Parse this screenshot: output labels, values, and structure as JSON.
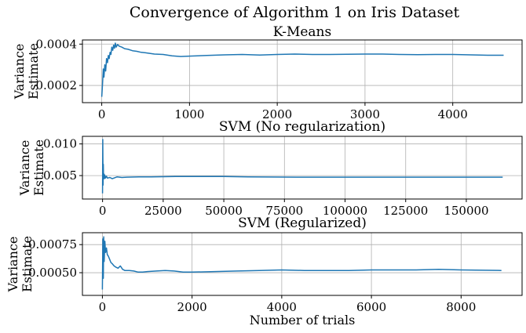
{
  "figure": {
    "suptitle": "Convergence of Algorithm 1 on Iris Dataset",
    "line_color": "#1f77b4",
    "grid_color": "#b0b0b0"
  },
  "chart_data": [
    {
      "type": "line",
      "title": "K-Means",
      "xlabel": "",
      "ylabel": "Variance\nEstimate",
      "xlim": [
        -220,
        4790
      ],
      "ylim": [
        0.000117,
        0.00042
      ],
      "xticks": [
        0,
        1000,
        2000,
        3000,
        4000
      ],
      "xtick_labels": [
        "0",
        "1000",
        "2000",
        "3000",
        "4000"
      ],
      "yticks": [
        0.0002,
        0.0004
      ],
      "ytick_labels": [
        "0.0002",
        "0.0004"
      ],
      "grid": true,
      "series": [
        {
          "x": [
            0,
            5,
            10,
            18,
            25,
            35,
            45,
            55,
            65,
            75,
            85,
            95,
            105,
            115,
            125,
            135,
            145,
            155,
            165,
            180,
            200,
            230,
            260,
            300,
            350,
            400,
            450,
            500,
            600,
            700,
            800,
            900,
            1000,
            1200,
            1400,
            1600,
            1800,
            2000,
            2200,
            2400,
            2600,
            2800,
            3000,
            3200,
            3400,
            3600,
            3800,
            4000,
            4200,
            4400,
            4580
          ],
          "y": [
            0.000145,
            0.000175,
            0.000215,
            0.00028,
            0.00024,
            0.0003,
            0.00027,
            0.00033,
            0.00031,
            0.000345,
            0.00033,
            0.00036,
            0.00035,
            0.000385,
            0.00037,
            0.000395,
            0.00038,
            0.000405,
            0.000385,
            0.000398,
            0.00039,
            0.000385,
            0.000378,
            0.000375,
            0.000368,
            0.000365,
            0.00036,
            0.000358,
            0.000352,
            0.00035,
            0.000343,
            0.00034,
            0.000342,
            0.000345,
            0.000348,
            0.00035,
            0.000347,
            0.00035,
            0.000352,
            0.00035,
            0.00035,
            0.000351,
            0.000352,
            0.000352,
            0.00035,
            0.000349,
            0.00035,
            0.00035,
            0.000348,
            0.000346,
            0.000346
          ]
        }
      ]
    },
    {
      "type": "line",
      "title": "SVM (No regularization)",
      "xlabel": "",
      "ylabel": "Variance\nEstimate",
      "xlim": [
        -8300,
        173000
      ],
      "ylim": [
        0.0013,
        0.0112
      ],
      "xticks": [
        0,
        25000,
        50000,
        75000,
        100000,
        125000,
        150000
      ],
      "xtick_labels": [
        "0",
        "25000",
        "50000",
        "75000",
        "100000",
        "125000",
        "150000"
      ],
      "yticks": [
        0.005,
        0.01
      ],
      "ytick_labels": [
        "0.005",
        "0.010"
      ],
      "grid": true,
      "series": [
        {
          "x": [
            0,
            100,
            200,
            300,
            400,
            500,
            700,
            900,
            1200,
            1600,
            2000,
            3000,
            4000,
            6000,
            8000,
            10000,
            15000,
            20000,
            30000,
            40000,
            50000,
            60000,
            80000,
            100000,
            120000,
            140000,
            160000,
            165000
          ],
          "y": [
            0.0022,
            0.0107,
            0.0035,
            0.0068,
            0.0046,
            0.0053,
            0.0045,
            0.0051,
            0.0046,
            0.0049,
            0.0046,
            0.0047,
            0.0045,
            0.0048,
            0.0047,
            0.00475,
            0.0048,
            0.0048,
            0.00485,
            0.00485,
            0.00485,
            0.0048,
            0.00475,
            0.00475,
            0.00475,
            0.00475,
            0.00475,
            0.00475
          ]
        }
      ]
    },
    {
      "type": "line",
      "title": "SVM (Regularized)",
      "xlabel": "Number of trials",
      "ylabel": "Variance\nEstimate",
      "xlim": [
        -445,
        9360
      ],
      "ylim": [
        0.000298,
        0.000856
      ],
      "xticks": [
        0,
        2000,
        4000,
        6000,
        8000
      ],
      "xtick_labels": [
        "0",
        "2000",
        "4000",
        "6000",
        "8000"
      ],
      "yticks": [
        0.0005,
        0.00075
      ],
      "ytick_labels": [
        "0.00050",
        "0.00075"
      ],
      "grid": true,
      "series": [
        {
          "x": [
            0,
            10,
            20,
            30,
            40,
            55,
            70,
            90,
            110,
            130,
            160,
            190,
            220,
            260,
            300,
            350,
            400,
            450,
            500,
            600,
            700,
            800,
            900,
            1000,
            1200,
            1400,
            1600,
            1800,
            2000,
            2500,
            3000,
            3500,
            4000,
            4500,
            5000,
            5500,
            6000,
            6500,
            7000,
            7500,
            8000,
            8500,
            8900
          ],
          "y": [
            0.00035,
            0.0008,
            0.00045,
            0.00082,
            0.0006,
            0.00078,
            0.00068,
            0.00072,
            0.00066,
            0.00065,
            0.00062,
            0.00059,
            0.00058,
            0.00056,
            0.00055,
            0.00054,
            0.00056,
            0.00053,
            0.00052,
            0.00052,
            0.000515,
            0.000505,
            0.000505,
            0.00051,
            0.000515,
            0.00052,
            0.000515,
            0.000505,
            0.000505,
            0.00051,
            0.000515,
            0.00052,
            0.000525,
            0.00052,
            0.00052,
            0.00052,
            0.000525,
            0.000525,
            0.000525,
            0.00053,
            0.000525,
            0.000522,
            0.00052
          ]
        }
      ]
    }
  ]
}
